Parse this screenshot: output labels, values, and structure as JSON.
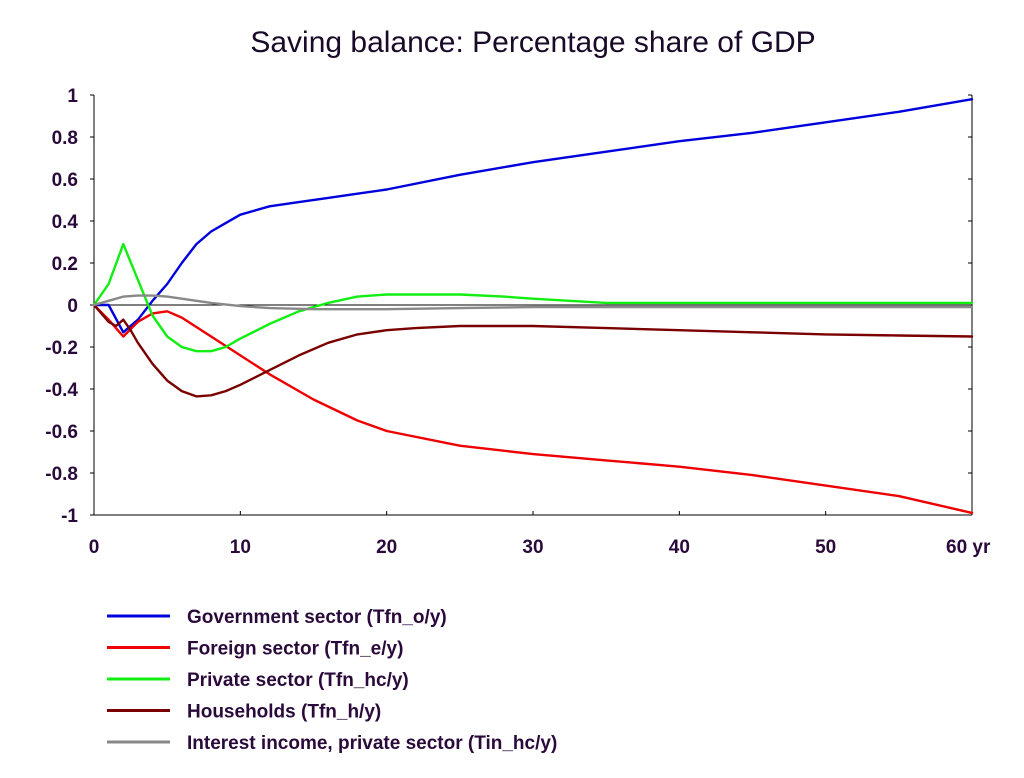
{
  "chart_data": {
    "type": "line",
    "title": "Saving balance: Percentage share of GDP",
    "xlabel": "",
    "ylabel": "",
    "xlim": [
      0,
      60
    ],
    "ylim": [
      -1,
      1
    ],
    "x_ticks": [
      "0",
      "10",
      "20",
      "30",
      "40",
      "50",
      "60 yr"
    ],
    "x_tick_values": [
      0,
      10,
      20,
      30,
      40,
      50,
      60
    ],
    "y_ticks": [
      "1",
      "0.8",
      "0.6",
      "0.4",
      "0.2",
      "0",
      "-0.2",
      "-0.4",
      "-0.6",
      "-0.8",
      "-1"
    ],
    "y_tick_values": [
      1,
      0.8,
      0.6,
      0.4,
      0.2,
      0,
      -0.2,
      -0.4,
      -0.6,
      -0.8,
      -1
    ],
    "grid": false,
    "zero_line": true,
    "legend_position": "bottom-left",
    "series": [
      {
        "name": "Government sector (Tfn_o/y)",
        "color": "#0000dd",
        "points": [
          [
            0,
            0
          ],
          [
            1,
            0
          ],
          [
            2,
            -0.13
          ],
          [
            3,
            -0.07
          ],
          [
            4,
            0.02
          ],
          [
            5,
            0.1
          ],
          [
            6,
            0.2
          ],
          [
            7,
            0.29
          ],
          [
            8,
            0.35
          ],
          [
            9,
            0.39
          ],
          [
            10,
            0.43
          ],
          [
            12,
            0.47
          ],
          [
            14,
            0.49
          ],
          [
            16,
            0.51
          ],
          [
            18,
            0.53
          ],
          [
            20,
            0.55
          ],
          [
            25,
            0.62
          ],
          [
            30,
            0.68
          ],
          [
            35,
            0.73
          ],
          [
            40,
            0.78
          ],
          [
            45,
            0.82
          ],
          [
            50,
            0.87
          ],
          [
            55,
            0.92
          ],
          [
            60,
            0.98
          ]
        ]
      },
      {
        "name": "Foreign sector (Tfn_e/y)",
        "color": "#ee0000",
        "points": [
          [
            0,
            0
          ],
          [
            1,
            -0.07
          ],
          [
            2,
            -0.15
          ],
          [
            3,
            -0.08
          ],
          [
            4,
            -0.04
          ],
          [
            5,
            -0.03
          ],
          [
            6,
            -0.06
          ],
          [
            8,
            -0.15
          ],
          [
            10,
            -0.24
          ],
          [
            12,
            -0.33
          ],
          [
            15,
            -0.45
          ],
          [
            18,
            -0.55
          ],
          [
            20,
            -0.6
          ],
          [
            25,
            -0.67
          ],
          [
            30,
            -0.71
          ],
          [
            35,
            -0.74
          ],
          [
            40,
            -0.77
          ],
          [
            45,
            -0.81
          ],
          [
            50,
            -0.86
          ],
          [
            55,
            -0.91
          ],
          [
            60,
            -0.99
          ]
        ]
      },
      {
        "name": "Private sector (Tfn_hc/y)",
        "color": "#11ee11",
        "points": [
          [
            0,
            0
          ],
          [
            1,
            0.1
          ],
          [
            2,
            0.29
          ],
          [
            3,
            0.12
          ],
          [
            4,
            -0.05
          ],
          [
            5,
            -0.15
          ],
          [
            6,
            -0.2
          ],
          [
            7,
            -0.22
          ],
          [
            8,
            -0.22
          ],
          [
            9,
            -0.2
          ],
          [
            10,
            -0.16
          ],
          [
            12,
            -0.09
          ],
          [
            14,
            -0.03
          ],
          [
            16,
            0.01
          ],
          [
            18,
            0.04
          ],
          [
            20,
            0.05
          ],
          [
            22,
            0.05
          ],
          [
            25,
            0.05
          ],
          [
            28,
            0.04
          ],
          [
            30,
            0.03
          ],
          [
            35,
            0.01
          ],
          [
            40,
            0.01
          ],
          [
            50,
            0.01
          ],
          [
            60,
            0.01
          ]
        ]
      },
      {
        "name": "Households (Tfn_h/y)",
        "color": "#7a0000",
        "points": [
          [
            0,
            0
          ],
          [
            1,
            -0.08
          ],
          [
            1.5,
            -0.1
          ],
          [
            2,
            -0.07
          ],
          [
            2.5,
            -0.12
          ],
          [
            3,
            -0.18
          ],
          [
            4,
            -0.28
          ],
          [
            5,
            -0.36
          ],
          [
            6,
            -0.41
          ],
          [
            7,
            -0.435
          ],
          [
            8,
            -0.43
          ],
          [
            9,
            -0.41
          ],
          [
            10,
            -0.38
          ],
          [
            12,
            -0.31
          ],
          [
            14,
            -0.24
          ],
          [
            16,
            -0.18
          ],
          [
            18,
            -0.14
          ],
          [
            20,
            -0.12
          ],
          [
            22,
            -0.11
          ],
          [
            25,
            -0.1
          ],
          [
            30,
            -0.1
          ],
          [
            35,
            -0.11
          ],
          [
            40,
            -0.12
          ],
          [
            45,
            -0.13
          ],
          [
            50,
            -0.14
          ],
          [
            55,
            -0.145
          ],
          [
            60,
            -0.15
          ]
        ]
      },
      {
        "name": "Interest income, private sector (Tin_hc/y)",
        "color": "#888888",
        "points": [
          [
            0,
            0
          ],
          [
            1,
            0.02
          ],
          [
            2,
            0.04
          ],
          [
            3,
            0.045
          ],
          [
            4,
            0.045
          ],
          [
            5,
            0.04
          ],
          [
            6,
            0.03
          ],
          [
            8,
            0.01
          ],
          [
            10,
            -0.005
          ],
          [
            12,
            -0.015
          ],
          [
            15,
            -0.02
          ],
          [
            20,
            -0.02
          ],
          [
            25,
            -0.015
          ],
          [
            30,
            -0.01
          ],
          [
            40,
            -0.01
          ],
          [
            50,
            -0.01
          ],
          [
            60,
            -0.01
          ]
        ]
      }
    ]
  }
}
